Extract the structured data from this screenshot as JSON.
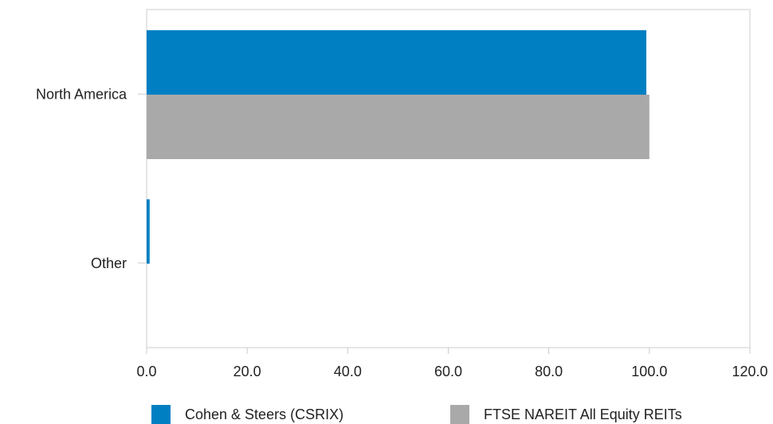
{
  "chart_data": {
    "type": "bar",
    "orientation": "horizontal",
    "categories": [
      "North America",
      "Other"
    ],
    "series": [
      {
        "name": "Cohen & Steers (CSRIX)",
        "color": "#0080c3",
        "values": [
          99.4,
          0.6
        ]
      },
      {
        "name": "FTSE NAREIT All Equity REITs",
        "color": "#a9a9a9",
        "values": [
          100.0,
          0.0
        ]
      }
    ],
    "xlim": [
      0,
      120
    ],
    "xticks": [
      0,
      20,
      40,
      60,
      80,
      100,
      120
    ],
    "xtick_labels": [
      "0.0",
      "20.0",
      "40.0",
      "60.0",
      "80.0",
      "100.0",
      "120.0"
    ],
    "grid": false,
    "legend_position": "bottom"
  }
}
